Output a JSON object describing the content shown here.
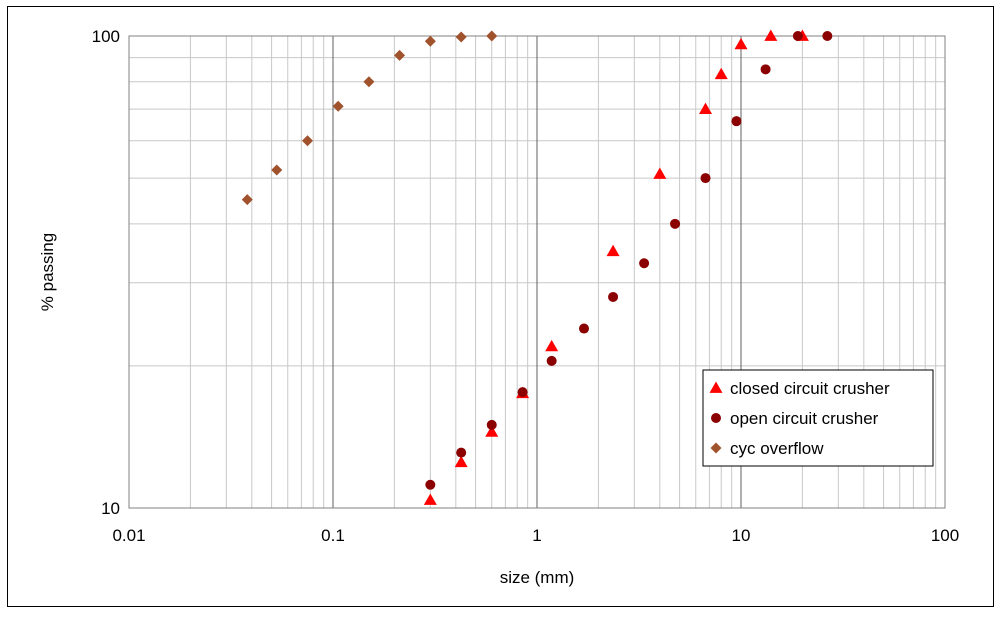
{
  "chart_data": {
    "type": "scatter",
    "xlabel": "size (mm)",
    "ylabel": "% passing",
    "x_scale": "log",
    "y_scale": "log",
    "xlim": [
      0.01,
      100
    ],
    "ylim": [
      10,
      100
    ],
    "x_ticks": [
      "0.01",
      "0.1",
      "1",
      "10",
      "100"
    ],
    "y_ticks": [
      "10",
      "100"
    ],
    "grid": true,
    "legend_position": "bottom-right",
    "series": [
      {
        "name": "closed circuit crusher",
        "marker": "triangle",
        "color": "#ff0000",
        "points": [
          [
            0.3,
            10.4
          ],
          [
            0.425,
            12.5
          ],
          [
            0.6,
            14.5
          ],
          [
            0.85,
            17.5
          ],
          [
            1.18,
            22.0
          ],
          [
            2.36,
            35.0
          ],
          [
            4.0,
            51.0
          ],
          [
            6.7,
            70.0
          ],
          [
            8.0,
            83.0
          ],
          [
            10.0,
            96.0
          ],
          [
            14.0,
            100.0
          ],
          [
            20.0,
            100.0
          ]
        ]
      },
      {
        "name": "open circuit crusher",
        "marker": "circle",
        "color": "#8b0000",
        "points": [
          [
            0.3,
            11.2
          ],
          [
            0.425,
            13.1
          ],
          [
            0.6,
            15.0
          ],
          [
            0.85,
            17.6
          ],
          [
            1.18,
            20.5
          ],
          [
            1.7,
            24.0
          ],
          [
            2.36,
            28.0
          ],
          [
            3.35,
            33.0
          ],
          [
            4.75,
            40.0
          ],
          [
            6.7,
            50.0
          ],
          [
            9.5,
            66.0
          ],
          [
            13.2,
            85.0
          ],
          [
            19.0,
            100.0
          ],
          [
            26.5,
            100.0
          ]
        ]
      },
      {
        "name": "cyc overflow",
        "marker": "diamond",
        "color": "#a0522d",
        "points": [
          [
            0.038,
            45.0
          ],
          [
            0.053,
            52.0
          ],
          [
            0.075,
            60.0
          ],
          [
            0.106,
            71.0
          ],
          [
            0.15,
            80.0
          ],
          [
            0.212,
            91.0
          ],
          [
            0.3,
            97.5
          ],
          [
            0.425,
            99.5
          ],
          [
            0.6,
            100.0
          ]
        ]
      }
    ]
  }
}
